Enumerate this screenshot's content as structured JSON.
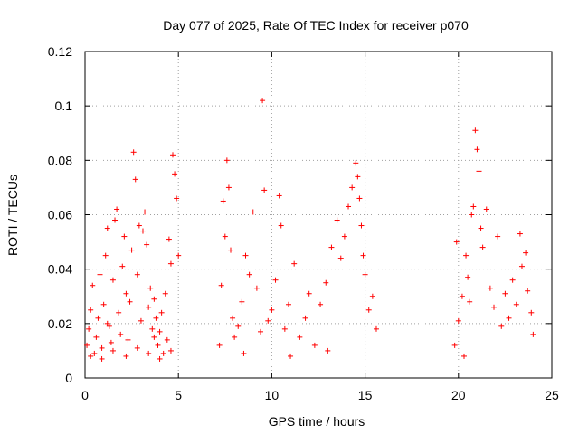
{
  "chart_data": {
    "type": "scatter",
    "title": "Day 077 of 2025, Rate Of TEC Index for receiver p070",
    "xlabel": "GPS time / hours",
    "ylabel": "ROTI / TECUs",
    "xlim": [
      0,
      25
    ],
    "ylim": [
      0,
      0.12
    ],
    "grid": true,
    "marker": "+",
    "series_color": "#ff0000",
    "x_ticks": [
      "0",
      "5",
      "10",
      "15",
      "20",
      "25"
    ],
    "y_ticks": [
      "0",
      "0.02",
      "0.04",
      "0.06",
      "0.08",
      "0.1",
      "0.12"
    ],
    "series": [
      {
        "name": "ROTI",
        "points": [
          [
            0.1,
            0.012
          ],
          [
            0.2,
            0.018
          ],
          [
            0.3,
            0.025
          ],
          [
            0.4,
            0.034
          ],
          [
            0.5,
            0.009
          ],
          [
            0.6,
            0.015
          ],
          [
            0.7,
            0.022
          ],
          [
            0.8,
            0.038
          ],
          [
            0.9,
            0.011
          ],
          [
            1.0,
            0.027
          ],
          [
            1.1,
            0.045
          ],
          [
            1.2,
            0.055
          ],
          [
            1.3,
            0.019
          ],
          [
            1.4,
            0.013
          ],
          [
            1.5,
            0.036
          ],
          [
            1.6,
            0.058
          ],
          [
            1.7,
            0.062
          ],
          [
            1.8,
            0.024
          ],
          [
            1.9,
            0.016
          ],
          [
            2.0,
            0.041
          ],
          [
            2.1,
            0.052
          ],
          [
            2.2,
            0.031
          ],
          [
            2.3,
            0.014
          ],
          [
            2.4,
            0.028
          ],
          [
            2.5,
            0.047
          ],
          [
            2.6,
            0.083
          ],
          [
            2.7,
            0.073
          ],
          [
            2.8,
            0.038
          ],
          [
            2.9,
            0.056
          ],
          [
            3.0,
            0.021
          ],
          [
            3.1,
            0.054
          ],
          [
            3.2,
            0.061
          ],
          [
            3.3,
            0.049
          ],
          [
            3.4,
            0.026
          ],
          [
            3.5,
            0.033
          ],
          [
            3.6,
            0.018
          ],
          [
            3.7,
            0.029
          ],
          [
            3.8,
            0.022
          ],
          [
            3.9,
            0.012
          ],
          [
            4.0,
            0.017
          ],
          [
            4.1,
            0.024
          ],
          [
            4.2,
            0.009
          ],
          [
            4.3,
            0.031
          ],
          [
            4.4,
            0.014
          ],
          [
            4.5,
            0.051
          ],
          [
            4.6,
            0.042
          ],
          [
            4.7,
            0.082
          ],
          [
            4.8,
            0.075
          ],
          [
            4.9,
            0.066
          ],
          [
            5.0,
            0.045
          ],
          [
            0.3,
            0.008
          ],
          [
            0.9,
            0.007
          ],
          [
            1.5,
            0.01
          ],
          [
            2.2,
            0.008
          ],
          [
            2.8,
            0.011
          ],
          [
            3.4,
            0.009
          ],
          [
            4.0,
            0.007
          ],
          [
            4.6,
            0.01
          ],
          [
            1.2,
            0.02
          ],
          [
            3.7,
            0.015
          ],
          [
            7.2,
            0.012
          ],
          [
            7.3,
            0.034
          ],
          [
            7.4,
            0.065
          ],
          [
            7.5,
            0.052
          ],
          [
            7.6,
            0.08
          ],
          [
            7.7,
            0.07
          ],
          [
            7.8,
            0.047
          ],
          [
            7.9,
            0.022
          ],
          [
            8.0,
            0.015
          ],
          [
            8.2,
            0.019
          ],
          [
            8.4,
            0.028
          ],
          [
            8.6,
            0.045
          ],
          [
            8.8,
            0.038
          ],
          [
            9.0,
            0.061
          ],
          [
            9.2,
            0.033
          ],
          [
            9.4,
            0.017
          ],
          [
            9.5,
            0.102
          ],
          [
            9.6,
            0.069
          ],
          [
            9.8,
            0.021
          ],
          [
            10.0,
            0.025
          ],
          [
            10.2,
            0.036
          ],
          [
            10.4,
            0.067
          ],
          [
            10.5,
            0.056
          ],
          [
            10.7,
            0.018
          ],
          [
            10.9,
            0.027
          ],
          [
            11.2,
            0.042
          ],
          [
            11.5,
            0.015
          ],
          [
            11.8,
            0.022
          ],
          [
            12.0,
            0.031
          ],
          [
            12.3,
            0.012
          ],
          [
            12.6,
            0.027
          ],
          [
            12.9,
            0.035
          ],
          [
            13.2,
            0.048
          ],
          [
            13.5,
            0.058
          ],
          [
            13.7,
            0.044
          ],
          [
            13.9,
            0.052
          ],
          [
            14.1,
            0.063
          ],
          [
            14.3,
            0.07
          ],
          [
            14.5,
            0.079
          ],
          [
            14.6,
            0.074
          ],
          [
            14.7,
            0.066
          ],
          [
            14.8,
            0.056
          ],
          [
            14.9,
            0.045
          ],
          [
            15.0,
            0.038
          ],
          [
            15.2,
            0.025
          ],
          [
            15.4,
            0.03
          ],
          [
            15.6,
            0.018
          ],
          [
            8.5,
            0.009
          ],
          [
            11.0,
            0.008
          ],
          [
            13.0,
            0.01
          ],
          [
            19.8,
            0.012
          ],
          [
            19.9,
            0.05
          ],
          [
            20.0,
            0.021
          ],
          [
            20.2,
            0.03
          ],
          [
            20.4,
            0.045
          ],
          [
            20.5,
            0.037
          ],
          [
            20.6,
            0.028
          ],
          [
            20.7,
            0.06
          ],
          [
            20.8,
            0.063
          ],
          [
            20.9,
            0.091
          ],
          [
            21.0,
            0.084
          ],
          [
            21.1,
            0.076
          ],
          [
            21.2,
            0.055
          ],
          [
            21.3,
            0.048
          ],
          [
            21.5,
            0.062
          ],
          [
            21.7,
            0.033
          ],
          [
            21.9,
            0.026
          ],
          [
            22.1,
            0.052
          ],
          [
            22.3,
            0.019
          ],
          [
            22.5,
            0.031
          ],
          [
            22.7,
            0.022
          ],
          [
            22.9,
            0.036
          ],
          [
            23.1,
            0.027
          ],
          [
            23.3,
            0.053
          ],
          [
            23.4,
            0.041
          ],
          [
            23.6,
            0.046
          ],
          [
            23.7,
            0.032
          ],
          [
            23.9,
            0.024
          ],
          [
            24.0,
            0.016
          ],
          [
            20.3,
            0.008
          ]
        ]
      }
    ]
  }
}
